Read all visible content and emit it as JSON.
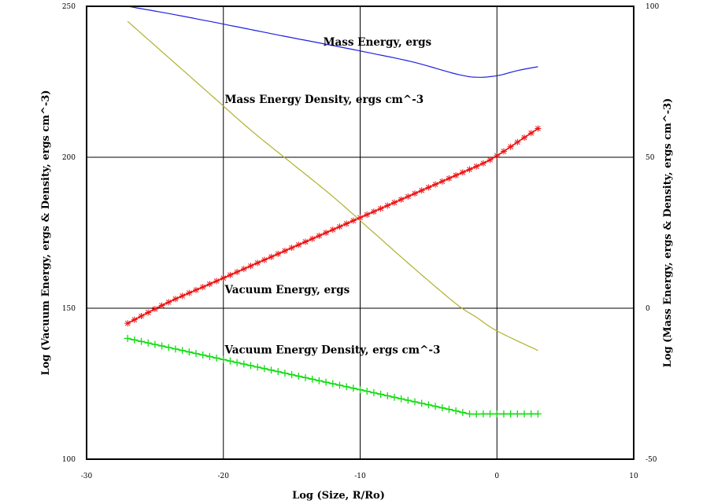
{
  "chart_data": {
    "type": "line",
    "xlabel": "Log (Size, R/Ro)",
    "ylabel_left": "Log (Vacuum Energy, ergs & Density, ergs cm^-3)",
    "ylabel_right": "Log (Mass Energy, ergs & Density, ergs cm^-3)",
    "xlim": [
      -30,
      10
    ],
    "ylim_left": [
      100,
      250
    ],
    "ylim_right": [
      -50,
      100
    ],
    "x_ticks": [
      "-30",
      "-20",
      "-10",
      "0",
      "10"
    ],
    "y_ticks_left": [
      "100",
      "150",
      "200",
      "250"
    ],
    "y_ticks_right": [
      "-50",
      "0",
      "50",
      "100"
    ],
    "grid": true,
    "series": [
      {
        "name": "Mass Energy, ergs",
        "axis": "right",
        "color": "#2020e0",
        "marker": "none",
        "x": [
          -27,
          -24,
          -21,
          -18,
          -15,
          -12,
          -9,
          -6,
          -3,
          -1.5,
          0,
          1.5,
          3
        ],
        "y": [
          100,
          97.6,
          95,
          92.3,
          89.6,
          87,
          84.3,
          81.4,
          77.6,
          76.5,
          77,
          78.7,
          80
        ]
      },
      {
        "name": "Mass Energy Density, ergs cm^-3",
        "axis": "right",
        "color": "#b0b030",
        "marker": "none",
        "x": [
          -27,
          -24,
          -21,
          -18,
          -15,
          -12,
          -9,
          -6,
          -3,
          -1.5,
          0,
          3
        ],
        "y": [
          95,
          83,
          71,
          59,
          48,
          37,
          25,
          13,
          1.5,
          -3,
          -7.5,
          -14
        ]
      },
      {
        "name": "Vacuum Energy, ergs",
        "axis": "left",
        "color": "#ee1111",
        "marker": "star",
        "x": [
          -27,
          -24,
          -21,
          -18,
          -15,
          -12,
          -9,
          -6,
          -3,
          -1,
          0,
          1.5,
          3
        ],
        "y": [
          145,
          152,
          158,
          164,
          170,
          176,
          182,
          188,
          194,
          198,
          200.5,
          205,
          209.5
        ]
      },
      {
        "name": "Vacuum Energy Density, ergs cm^-3",
        "axis": "left",
        "color": "#11dd11",
        "marker": "plus",
        "x": [
          -27,
          -24,
          -21,
          -18,
          -15,
          -12,
          -9,
          -6,
          -3,
          -2,
          -1,
          0,
          3
        ],
        "y": [
          140,
          137,
          134,
          131,
          128,
          125,
          122,
          119,
          116,
          115,
          115,
          115,
          115
        ]
      }
    ],
    "annotations": [
      {
        "text": "Mass Energy, ergs",
        "x": -12.7,
        "y_left": 237
      },
      {
        "text": "Mass Energy Density, ergs cm^-3",
        "x": -19.9,
        "y_left": 218
      },
      {
        "text": "Vacuum Energy, ergs",
        "x": -19.9,
        "y_left": 155
      },
      {
        "text": "Vacuum Energy Density, ergs cm^-3",
        "x": -19.9,
        "y_left": 135
      }
    ]
  }
}
